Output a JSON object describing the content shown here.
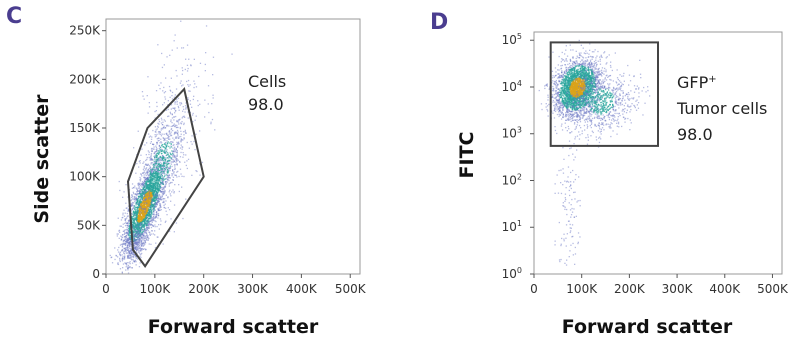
{
  "colors": {
    "panel_letter": "#4a3d8f",
    "gate_stroke": "#444444",
    "frame": "#999999",
    "dots_low": "#6d79c6",
    "dots_mid": "#2aa59c",
    "dots_high": "#d9a21b"
  },
  "chart_data": [
    {
      "type": "scatter",
      "panel": "C",
      "title": "",
      "xlabel": "Forward scatter",
      "ylabel": "Side scatter",
      "xlim": [
        0,
        520000
      ],
      "ylim": [
        0,
        262000
      ],
      "x_ticks": [
        {
          "value": 0,
          "label": "0"
        },
        {
          "value": 100000,
          "label": "100K"
        },
        {
          "value": 200000,
          "label": "200K"
        },
        {
          "value": 300000,
          "label": "300K"
        },
        {
          "value": 400000,
          "label": "400K"
        },
        {
          "value": 500000,
          "label": "500K"
        }
      ],
      "y_ticks": [
        {
          "value": 0,
          "label": "0"
        },
        {
          "value": 50000,
          "label": "50K"
        },
        {
          "value": 100000,
          "label": "100K"
        },
        {
          "value": 150000,
          "label": "150K"
        },
        {
          "value": 200000,
          "label": "200K"
        },
        {
          "value": 250000,
          "label": "250K"
        }
      ],
      "gate": {
        "shape": "polygon",
        "points": [
          [
            55000,
            25000
          ],
          [
            45000,
            95000
          ],
          [
            85000,
            150000
          ],
          [
            160000,
            190000
          ],
          [
            200000,
            100000
          ],
          [
            80000,
            8000
          ]
        ],
        "label": "Cells",
        "value": "98.0"
      },
      "populations": [
        {
          "cx": 78000,
          "cy": 70000,
          "sx": 22000,
          "sy": 24000,
          "rho": 0.75,
          "n": 2600
        },
        {
          "cx": 110000,
          "cy": 110000,
          "sx": 28000,
          "sy": 30000,
          "rho": 0.6,
          "n": 900
        },
        {
          "cx": 150000,
          "cy": 170000,
          "sx": 35000,
          "sy": 45000,
          "rho": 0.3,
          "n": 200
        },
        {
          "cx": 60000,
          "cy": 30000,
          "sx": 12000,
          "sy": 10000,
          "rho": 0.5,
          "n": 300
        }
      ]
    },
    {
      "type": "scatter",
      "panel": "D",
      "title": "",
      "xlabel": "Forward scatter",
      "ylabel": "FITC",
      "yscale": "log",
      "xlim": [
        0,
        520000
      ],
      "ylim": [
        1,
        150000
      ],
      "x_ticks": [
        {
          "value": 0,
          "label": "0"
        },
        {
          "value": 100000,
          "label": "100K"
        },
        {
          "value": 200000,
          "label": "200K"
        },
        {
          "value": 300000,
          "label": "300K"
        },
        {
          "value": 400000,
          "label": "400K"
        },
        {
          "value": 500000,
          "label": "500K"
        }
      ],
      "y_ticks": [
        {
          "value": 1,
          "base": "10",
          "exp": "0"
        },
        {
          "value": 10,
          "base": "10",
          "exp": "1"
        },
        {
          "value": 100,
          "base": "10",
          "exp": "2"
        },
        {
          "value": 1000,
          "base": "10",
          "exp": "3"
        },
        {
          "value": 10000,
          "base": "10",
          "exp": "4"
        },
        {
          "value": 100000,
          "base": "10",
          "exp": "5"
        }
      ],
      "gate": {
        "shape": "rectangle",
        "x0": 35000,
        "x1": 260000,
        "y0": 550,
        "y1": 90000,
        "label_main": "GFP",
        "label_sup": "+",
        "label_line2": "Tumor cells",
        "value": "98.0"
      },
      "populations": [
        {
          "cx": 90000,
          "cy_log": 4.0,
          "sx": 24000,
          "sy_log": 0.3,
          "rho": 0.2,
          "n": 2800
        },
        {
          "cx": 140000,
          "cy_log": 3.7,
          "sx": 35000,
          "sy_log": 0.35,
          "rho": 0.1,
          "n": 800
        },
        {
          "cx": 70000,
          "cy_log": 1.5,
          "sx": 12000,
          "sy_log": 0.8,
          "rho": 0.0,
          "n": 120
        }
      ]
    }
  ]
}
